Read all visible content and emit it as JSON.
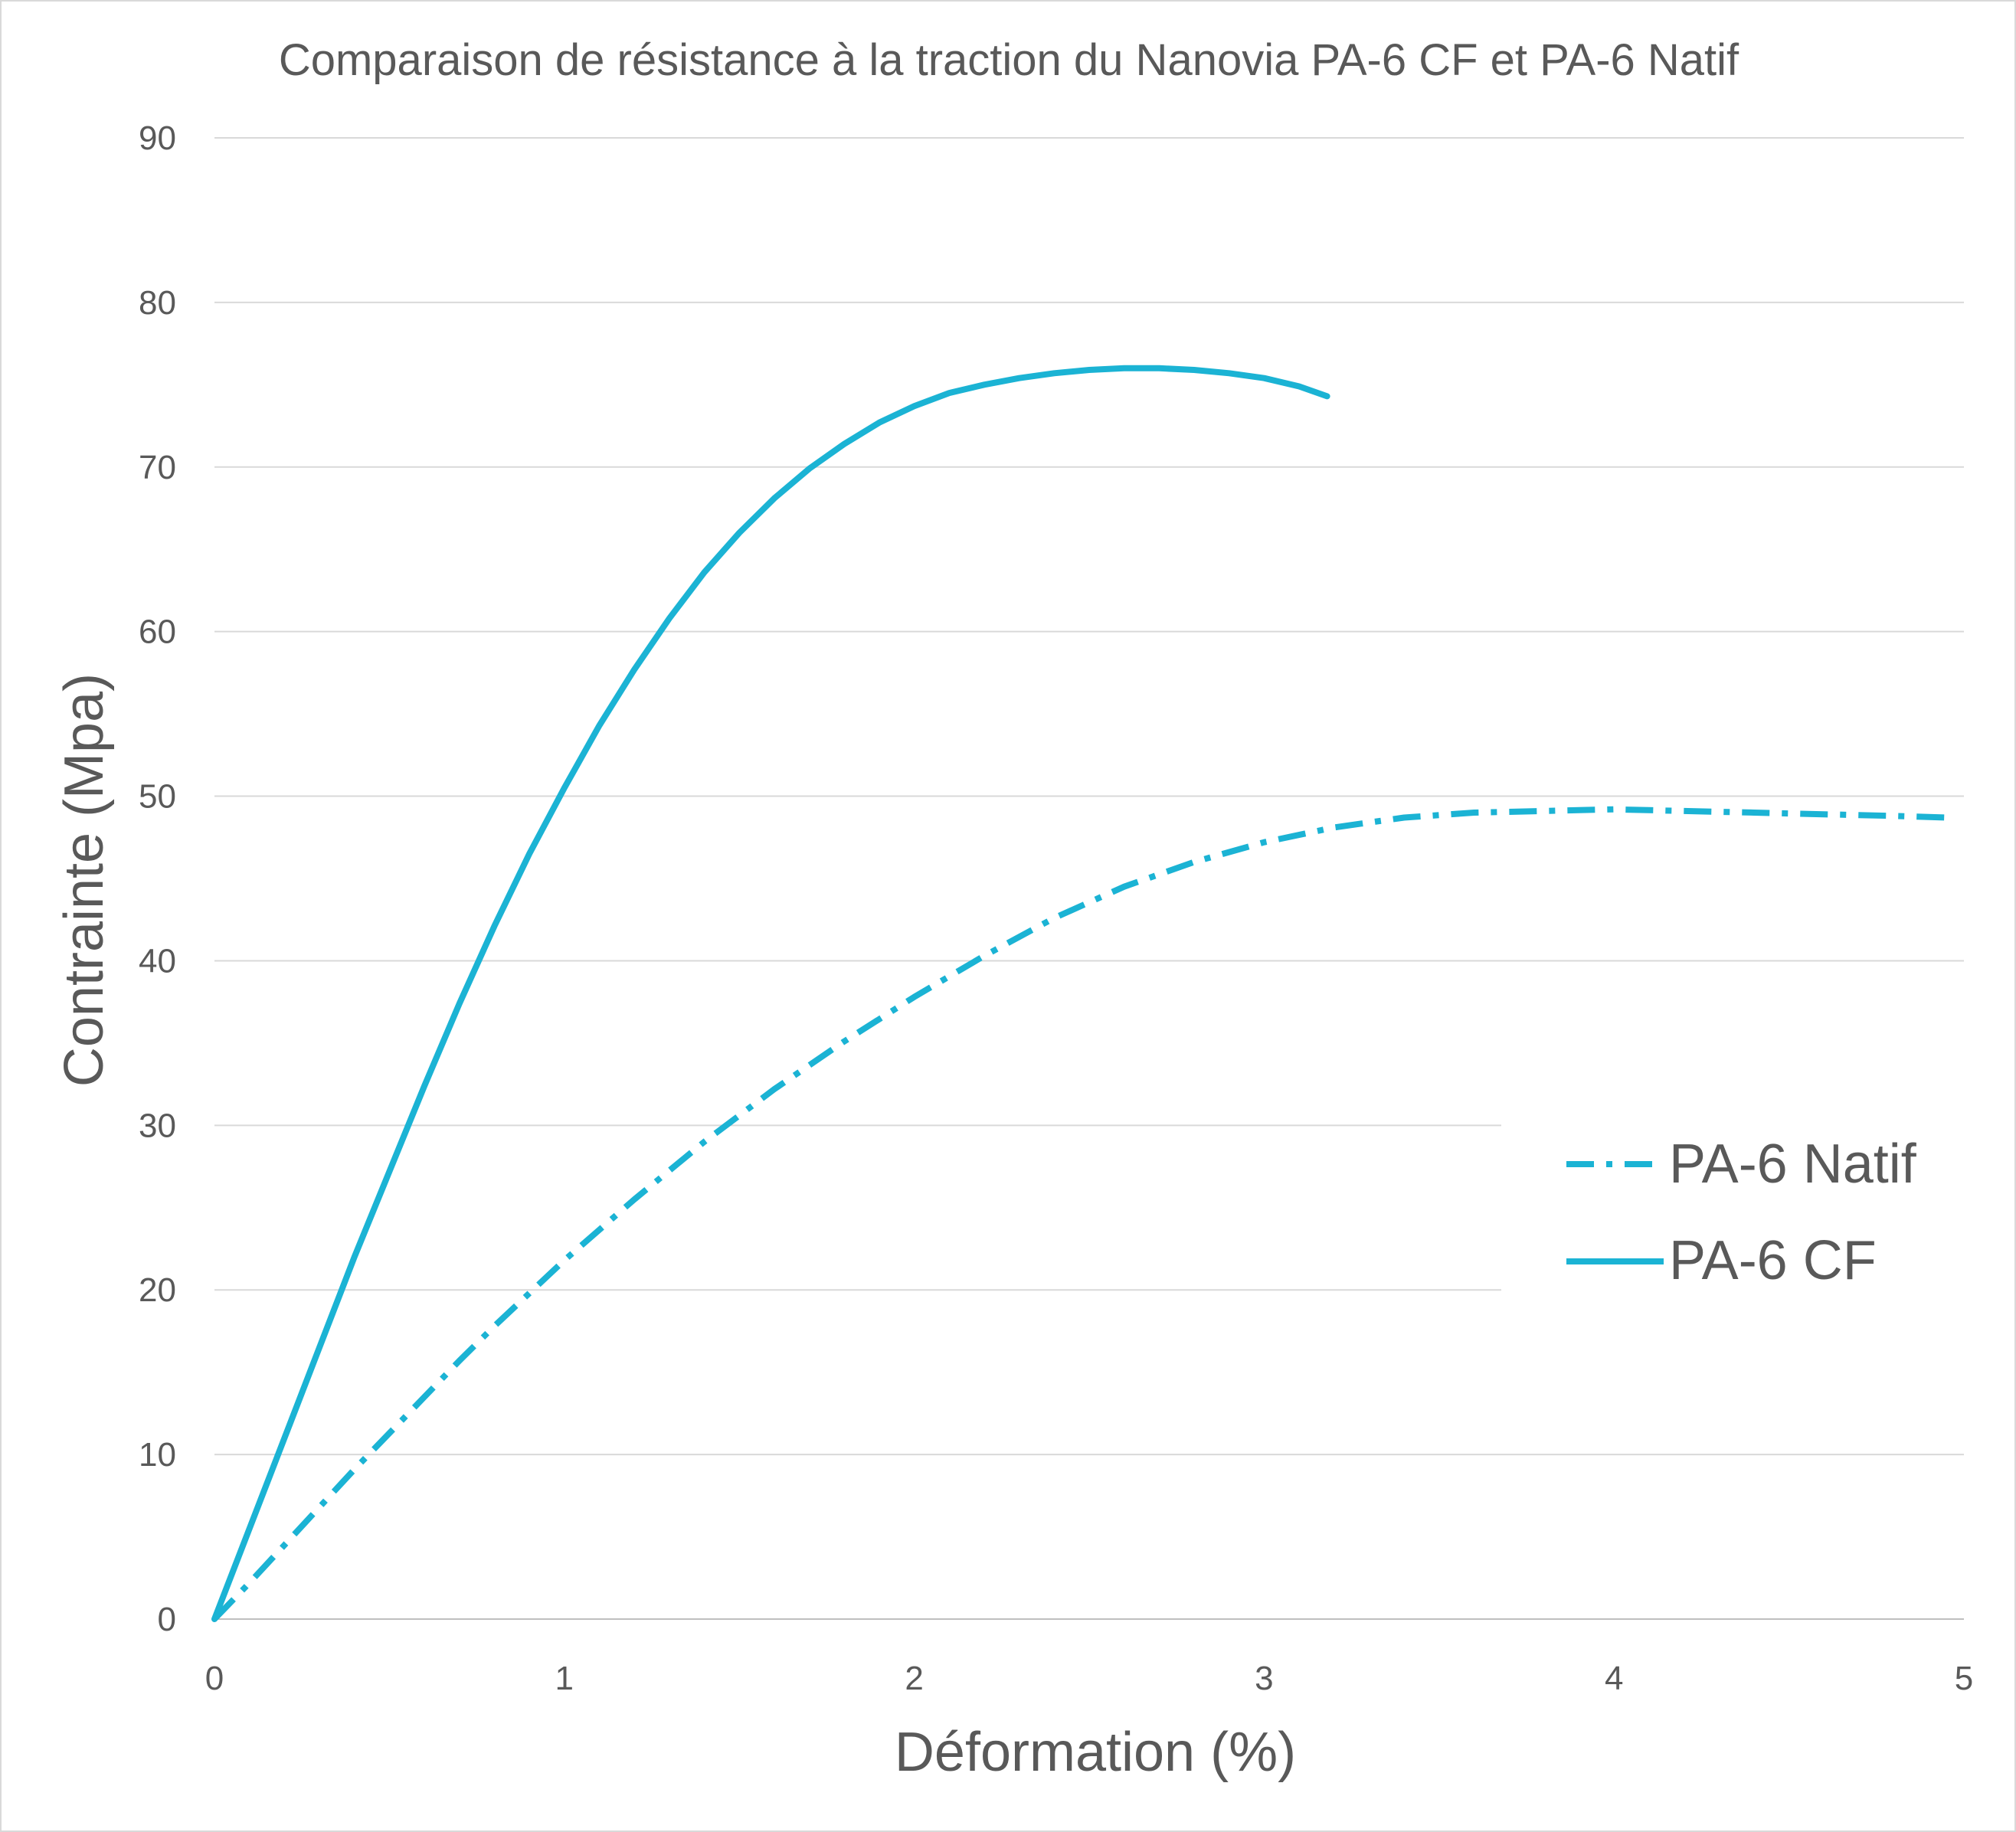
{
  "chart_data": {
    "type": "line",
    "title": "Comparaison de résistance à la traction du Nanovia PA-6 CF et PA-6 Natif",
    "xlabel": "Déformation (%)",
    "ylabel": "Contrainte  (Mpa)",
    "xlim": [
      0,
      5
    ],
    "ylim": [
      0,
      90
    ],
    "x_ticks": [
      "0",
      "1",
      "2",
      "3",
      "4",
      "5"
    ],
    "y_ticks": [
      "0",
      "10",
      "20",
      "30",
      "40",
      "50",
      "60",
      "70",
      "80",
      "90"
    ],
    "grid": "horizontal",
    "legend_position": "right",
    "color": "#1bb3d4",
    "series": [
      {
        "name": "PA-6 Natif",
        "style": "dash-dot",
        "x": [
          0,
          0.1,
          0.2,
          0.3,
          0.4,
          0.5,
          0.6,
          0.7,
          0.8,
          0.9,
          1.0,
          1.2,
          1.4,
          1.6,
          1.8,
          2.0,
          2.2,
          2.4,
          2.6,
          2.8,
          3.0,
          3.2,
          3.4,
          3.6,
          3.8,
          4.0,
          4.2,
          4.4,
          4.6,
          4.8,
          4.95
        ],
        "y": [
          0,
          2.2,
          4.5,
          6.8,
          9.1,
          11.3,
          13.5,
          15.7,
          17.8,
          19.8,
          21.8,
          25.5,
          29.0,
          32.2,
          35.1,
          37.8,
          40.3,
          42.6,
          44.5,
          46.0,
          47.2,
          48.1,
          48.7,
          49.0,
          49.1,
          49.2,
          49.1,
          49.0,
          48.9,
          48.8,
          48.7
        ]
      },
      {
        "name": "PA-6 CF",
        "style": "solid",
        "x": [
          0,
          0.1,
          0.2,
          0.3,
          0.4,
          0.5,
          0.6,
          0.7,
          0.8,
          0.9,
          1.0,
          1.1,
          1.2,
          1.3,
          1.4,
          1.5,
          1.6,
          1.7,
          1.8,
          1.9,
          2.0,
          2.1,
          2.2,
          2.3,
          2.4,
          2.5,
          2.6,
          2.7,
          2.8,
          2.9,
          3.0,
          3.1,
          3.18
        ],
        "y": [
          0,
          5.5,
          11.0,
          16.5,
          22.0,
          27.2,
          32.4,
          37.4,
          42.1,
          46.5,
          50.5,
          54.3,
          57.7,
          60.8,
          63.6,
          66.0,
          68.1,
          69.9,
          71.4,
          72.7,
          73.7,
          74.5,
          75.0,
          75.4,
          75.7,
          75.9,
          76.0,
          76.0,
          75.9,
          75.7,
          75.4,
          74.9,
          74.3
        ]
      }
    ]
  }
}
